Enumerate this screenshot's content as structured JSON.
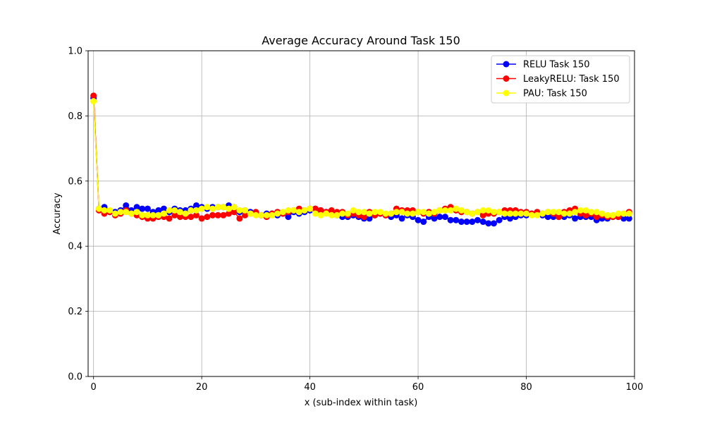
{
  "chart_data": {
    "type": "line",
    "title": "Average Accuracy Around Task 150",
    "xlabel": "x (sub-index within task)",
    "ylabel": "Accuracy",
    "xlim": [
      -1,
      100
    ],
    "ylim": [
      0,
      1.0
    ],
    "xticks": [
      0,
      20,
      40,
      60,
      80,
      100
    ],
    "yticks": [
      0.0,
      0.2,
      0.4,
      0.6,
      0.8,
      1.0
    ],
    "ytick_labels": [
      "0.0",
      "0.2",
      "0.4",
      "0.6",
      "0.8",
      "1.0"
    ],
    "grid": true,
    "legend_position": "top-right",
    "series": [
      {
        "name": "RELU Task 150",
        "color": "#0000ff",
        "values": [
          0.855,
          0.515,
          0.52,
          0.505,
          0.505,
          0.51,
          0.525,
          0.51,
          0.52,
          0.515,
          0.515,
          0.505,
          0.51,
          0.515,
          0.505,
          0.515,
          0.51,
          0.51,
          0.515,
          0.525,
          0.52,
          0.515,
          0.52,
          0.52,
          0.52,
          0.525,
          0.52,
          0.505,
          0.51,
          0.505,
          0.5,
          0.495,
          0.5,
          0.5,
          0.495,
          0.5,
          0.49,
          0.505,
          0.5,
          0.505,
          0.51,
          0.515,
          0.51,
          0.505,
          0.5,
          0.495,
          0.49,
          0.49,
          0.495,
          0.49,
          0.485,
          0.485,
          0.495,
          0.5,
          0.495,
          0.49,
          0.495,
          0.485,
          0.495,
          0.49,
          0.48,
          0.475,
          0.49,
          0.485,
          0.49,
          0.49,
          0.48,
          0.48,
          0.475,
          0.475,
          0.475,
          0.48,
          0.475,
          0.47,
          0.47,
          0.48,
          0.49,
          0.485,
          0.49,
          0.495,
          0.495,
          0.5,
          0.5,
          0.495,
          0.49,
          0.49,
          0.49,
          0.49,
          0.495,
          0.485,
          0.49,
          0.49,
          0.49,
          0.48,
          0.485,
          0.485,
          0.49,
          0.49,
          0.485,
          0.485
        ]
      },
      {
        "name": "LeakyRELU: Task 150",
        "color": "#ff0000",
        "values": [
          0.862,
          0.51,
          0.5,
          0.505,
          0.495,
          0.5,
          0.51,
          0.5,
          0.495,
          0.49,
          0.485,
          0.485,
          0.49,
          0.49,
          0.485,
          0.495,
          0.49,
          0.49,
          0.49,
          0.495,
          0.485,
          0.49,
          0.495,
          0.495,
          0.495,
          0.5,
          0.505,
          0.485,
          0.495,
          0.5,
          0.505,
          0.495,
          0.49,
          0.5,
          0.505,
          0.5,
          0.505,
          0.51,
          0.515,
          0.51,
          0.515,
          0.515,
          0.51,
          0.505,
          0.51,
          0.505,
          0.505,
          0.495,
          0.5,
          0.495,
          0.49,
          0.505,
          0.495,
          0.5,
          0.495,
          0.5,
          0.515,
          0.51,
          0.51,
          0.51,
          0.505,
          0.5,
          0.505,
          0.5,
          0.51,
          0.515,
          0.52,
          0.51,
          0.505,
          0.505,
          0.5,
          0.505,
          0.495,
          0.5,
          0.5,
          0.505,
          0.51,
          0.51,
          0.51,
          0.505,
          0.505,
          0.5,
          0.505,
          0.5,
          0.505,
          0.5,
          0.49,
          0.505,
          0.51,
          0.515,
          0.5,
          0.495,
          0.5,
          0.49,
          0.495,
          0.49,
          0.49,
          0.49,
          0.5,
          0.505
        ]
      },
      {
        "name": "PAU: Task 150",
        "color": "#ffff00",
        "values": [
          0.845,
          0.515,
          0.51,
          0.51,
          0.5,
          0.505,
          0.505,
          0.5,
          0.505,
          0.495,
          0.495,
          0.495,
          0.495,
          0.5,
          0.51,
          0.51,
          0.505,
          0.5,
          0.51,
          0.51,
          0.515,
          0.52,
          0.515,
          0.52,
          0.52,
          0.515,
          0.52,
          0.51,
          0.51,
          0.5,
          0.495,
          0.495,
          0.495,
          0.495,
          0.5,
          0.505,
          0.51,
          0.51,
          0.505,
          0.51,
          0.515,
          0.5,
          0.495,
          0.5,
          0.495,
          0.495,
          0.5,
          0.5,
          0.51,
          0.505,
          0.505,
          0.5,
          0.505,
          0.505,
          0.5,
          0.5,
          0.505,
          0.505,
          0.5,
          0.5,
          0.505,
          0.505,
          0.5,
          0.505,
          0.51,
          0.51,
          0.51,
          0.515,
          0.51,
          0.505,
          0.5,
          0.505,
          0.51,
          0.51,
          0.505,
          0.505,
          0.5,
          0.5,
          0.5,
          0.5,
          0.5,
          0.495,
          0.495,
          0.5,
          0.505,
          0.505,
          0.505,
          0.5,
          0.5,
          0.505,
          0.51,
          0.51,
          0.505,
          0.505,
          0.5,
          0.495,
          0.495,
          0.5,
          0.5,
          0.5
        ]
      }
    ]
  }
}
